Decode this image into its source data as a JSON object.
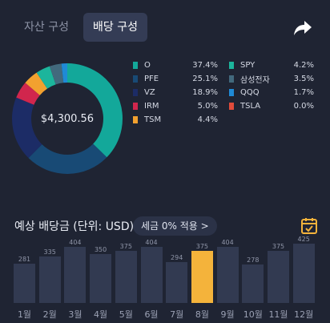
{
  "tabs": [
    {
      "label": "자산 구성",
      "active": false
    },
    {
      "label": "배당 구성",
      "active": true
    }
  ],
  "share_icon": "share-arrow-icon",
  "donut": {
    "center_label": "$4,300.56"
  },
  "legend": {
    "col1": [
      {
        "name": "O",
        "value": "37.4%",
        "color": "#13a89a"
      },
      {
        "name": "PFE",
        "value": "25.1%",
        "color": "#184a75"
      },
      {
        "name": "VZ",
        "value": "18.9%",
        "color": "#1c2c66"
      },
      {
        "name": "IRM",
        "value": "5.0%",
        "color": "#d1264d"
      },
      {
        "name": "TSM",
        "value": "4.4%",
        "color": "#f2a12f"
      }
    ],
    "col2": [
      {
        "name": "SPY",
        "value": "4.2%",
        "color": "#1cb59c"
      },
      {
        "name": "삼성전자",
        "value": "3.5%",
        "color": "#42697d"
      },
      {
        "name": "QQQ",
        "value": "1.7%",
        "color": "#1f8ad6"
      },
      {
        "name": "TSLA",
        "value": "0.0%",
        "color": "#e04b3b"
      }
    ]
  },
  "dividend_section": {
    "title": "예상 배당금 (단위: USD)",
    "tax_button": "세금 0% 적용 >",
    "calendar_icon": "calendar-icon"
  },
  "chart_data": {
    "type": "bar",
    "categories": [
      "1월",
      "2월",
      "3월",
      "4월",
      "5월",
      "6월",
      "7월",
      "8월",
      "9월",
      "10월",
      "11월",
      "12월"
    ],
    "values": [
      281,
      335,
      404,
      350,
      375,
      404,
      294,
      375,
      404,
      278,
      375,
      425
    ],
    "highlight_index": 7,
    "highlight_color": "#f4b33b",
    "bar_color": "#323a51"
  }
}
